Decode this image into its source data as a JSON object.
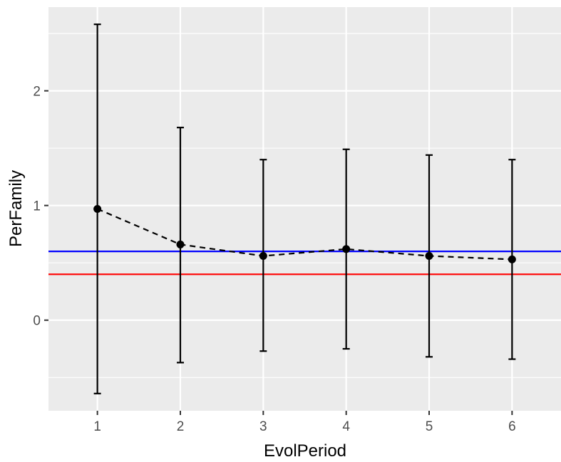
{
  "chart_data": {
    "type": "line",
    "title": "",
    "xlabel": "EvolPeriod",
    "ylabel": "PerFamily",
    "x": [
      1,
      2,
      3,
      4,
      5,
      6
    ],
    "series": [
      {
        "values": [
          0.97,
          0.66,
          0.56,
          0.62,
          0.56,
          0.53
        ],
        "lower": [
          -0.64,
          -0.37,
          -0.27,
          -0.25,
          -0.32,
          -0.34
        ],
        "upper": [
          2.58,
          1.68,
          1.4,
          1.49,
          1.44,
          1.4
        ],
        "line_style": "dashed",
        "color": "#000000"
      }
    ],
    "reference_lines": [
      {
        "y": 0.6,
        "color": "#0000ff"
      },
      {
        "y": 0.4,
        "color": "#ff0000"
      }
    ],
    "x_ticks": [
      1,
      2,
      3,
      4,
      5,
      6
    ],
    "x_tick_labels": [
      "1",
      "2",
      "3",
      "4",
      "5",
      "6"
    ],
    "y_ticks": [
      0,
      1,
      2
    ],
    "y_tick_labels": [
      "0",
      "1",
      "2"
    ],
    "xlim": [
      0.41,
      6.59
    ],
    "ylim": [
      -0.79,
      2.73
    ],
    "grid": true,
    "panel_background": "#ebebeb",
    "grid_color": "#ffffff"
  }
}
